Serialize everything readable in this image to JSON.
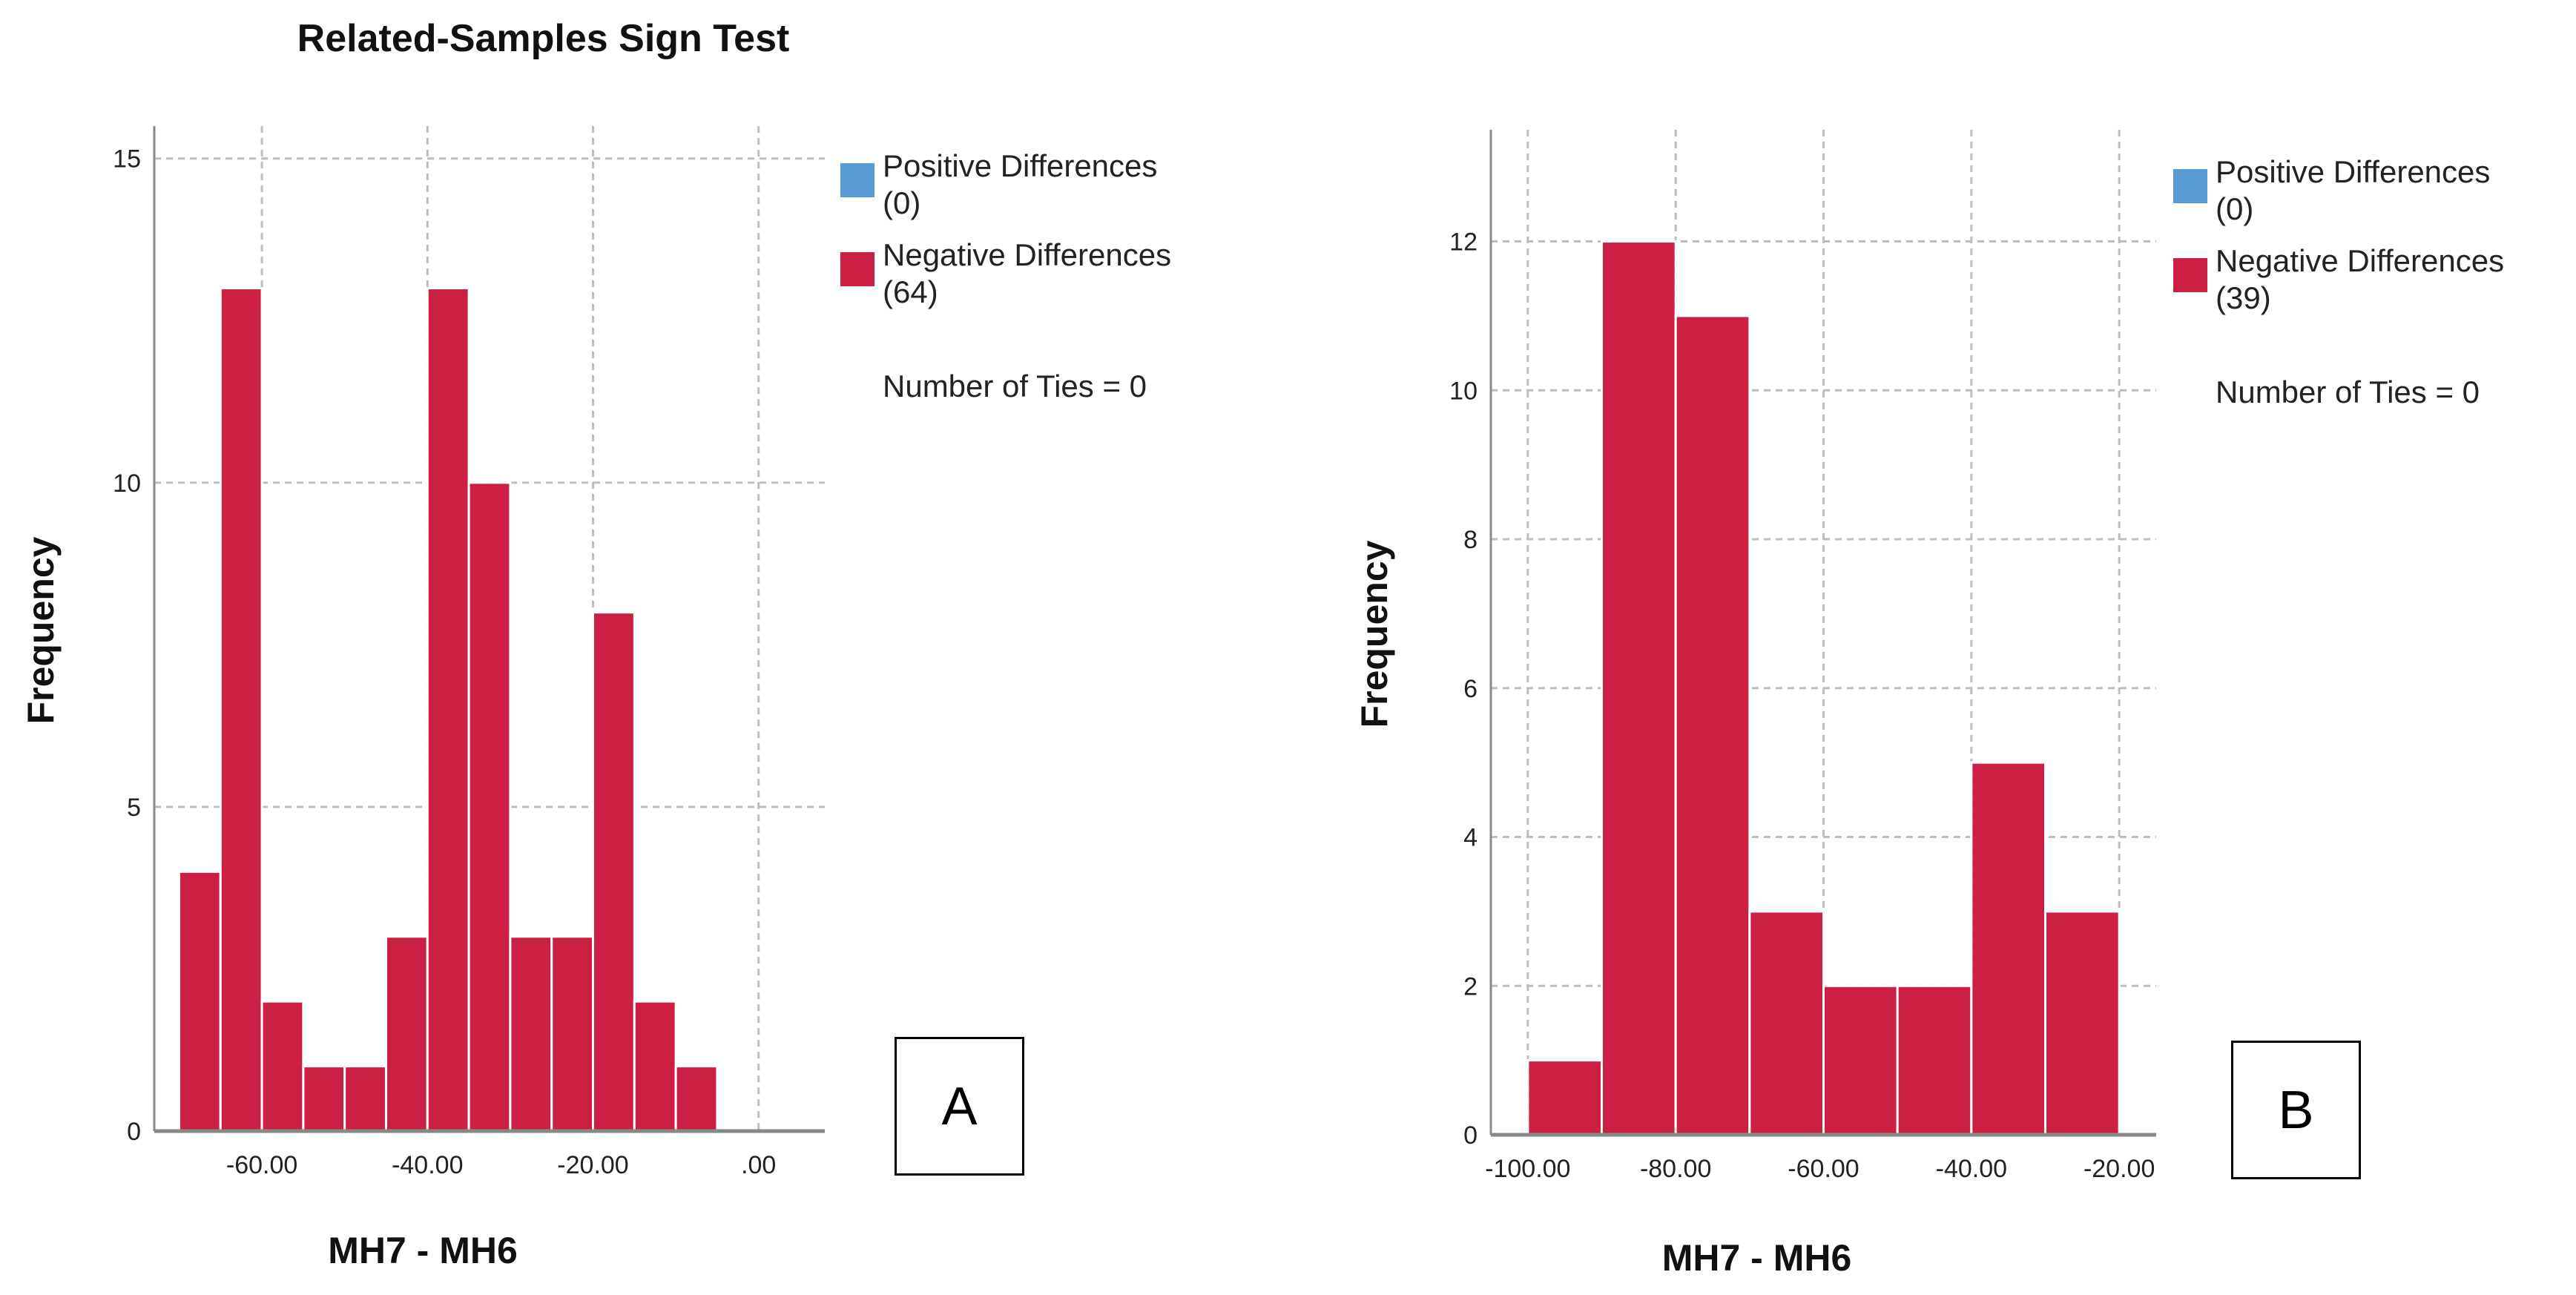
{
  "title": "Related-Samples Sign Test",
  "colors": {
    "negative": "#cc1f44",
    "positive": "#5b9bd5",
    "grid": "#bdbdbd",
    "axis": "#888888"
  },
  "chart_data": [
    {
      "type": "bar",
      "panel_label": "A",
      "title": "Related-Samples Sign Test",
      "xlabel": "MH7 - MH6",
      "ylabel": "Frequency",
      "xlim": [
        -73,
        8
      ],
      "ylim": [
        0,
        15.5
      ],
      "xticks": [
        -60,
        -40,
        -20,
        0
      ],
      "xtick_labels": [
        "-60.00",
        "-40.00",
        "-20.00",
        ".00"
      ],
      "yticks": [
        0,
        5,
        10,
        15
      ],
      "ytick_labels": [
        "0",
        "5",
        "10",
        "15"
      ],
      "grid": true,
      "bin_width": 5,
      "bins": [
        {
          "start": -70,
          "end": -65,
          "value": 4
        },
        {
          "start": -65,
          "end": -60,
          "value": 13
        },
        {
          "start": -60,
          "end": -55,
          "value": 2
        },
        {
          "start": -55,
          "end": -50,
          "value": 1
        },
        {
          "start": -50,
          "end": -45,
          "value": 1
        },
        {
          "start": -45,
          "end": -40,
          "value": 3
        },
        {
          "start": -40,
          "end": -35,
          "value": 13
        },
        {
          "start": -35,
          "end": -30,
          "value": 10
        },
        {
          "start": -30,
          "end": -25,
          "value": 3
        },
        {
          "start": -25,
          "end": -20,
          "value": 3
        },
        {
          "start": -20,
          "end": -15,
          "value": 8
        },
        {
          "start": -15,
          "end": -10,
          "value": 2
        },
        {
          "start": -10,
          "end": -5,
          "value": 1
        }
      ],
      "legend": {
        "positive_label": "Positive Differences",
        "positive_count": "(0)",
        "negative_label": "Negative Differences",
        "negative_count": "(64)",
        "ties": "Number of Ties = 0"
      }
    },
    {
      "type": "bar",
      "panel_label": "B",
      "title": "Related-Samples Sign Test",
      "xlabel": "MH7 - MH6",
      "ylabel": "Frequency",
      "xlim": [
        -105,
        -15
      ],
      "ylim": [
        0,
        13.5
      ],
      "xticks": [
        -100,
        -80,
        -60,
        -40,
        -20
      ],
      "xtick_labels": [
        "-100.00",
        "-80.00",
        "-60.00",
        "-40.00",
        "-20.00"
      ],
      "yticks": [
        0,
        2,
        4,
        6,
        8,
        10,
        12
      ],
      "ytick_labels": [
        "0",
        "2",
        "4",
        "6",
        "8",
        "10",
        "12"
      ],
      "grid": true,
      "bin_width": 10,
      "bins": [
        {
          "start": -100,
          "end": -90,
          "value": 1
        },
        {
          "start": -90,
          "end": -80,
          "value": 12
        },
        {
          "start": -80,
          "end": -70,
          "value": 11
        },
        {
          "start": -70,
          "end": -60,
          "value": 3
        },
        {
          "start": -60,
          "end": -50,
          "value": 2
        },
        {
          "start": -50,
          "end": -40,
          "value": 2
        },
        {
          "start": -40,
          "end": -30,
          "value": 5
        },
        {
          "start": -30,
          "end": -20,
          "value": 3
        }
      ],
      "legend": {
        "positive_label": "Positive Differences",
        "positive_count": "(0)",
        "negative_label": "Negative Differences",
        "negative_count": "(39)",
        "ties": "Number of Ties = 0"
      }
    }
  ]
}
